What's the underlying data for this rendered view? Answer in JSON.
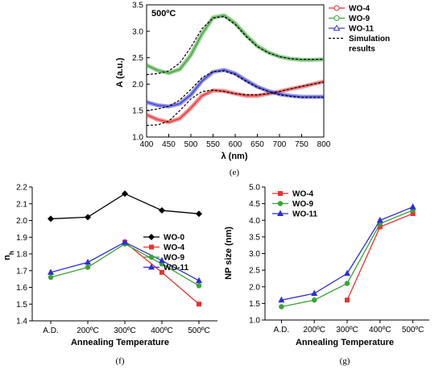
{
  "chart_data": [
    {
      "id": "e",
      "type": "line",
      "caption": "(e)",
      "annotation": "500ºC",
      "xlabel": "λ (nm)",
      "ylabel": "A (a.u.)",
      "xlim": [
        400,
        800
      ],
      "ylim": [
        1.0,
        3.5
      ],
      "xticks": [
        "400",
        "450",
        "500",
        "550",
        "600",
        "650",
        "700",
        "750",
        "800"
      ],
      "yticks": [
        "1.0",
        "1.5",
        "2.0",
        "2.5",
        "3.0",
        "3.5"
      ],
      "x": [
        400,
        425,
        450,
        475,
        500,
        525,
        550,
        575,
        600,
        625,
        650,
        675,
        700,
        725,
        750,
        775,
        800
      ],
      "series": [
        {
          "name": "WO-4",
          "color": "#e8312f",
          "values": [
            1.42,
            1.33,
            1.28,
            1.35,
            1.55,
            1.78,
            1.88,
            1.87,
            1.82,
            1.78,
            1.78,
            1.82,
            1.86,
            1.91,
            1.95,
            2.0,
            2.05
          ]
        },
        {
          "name": "WO-9",
          "color": "#3aa335",
          "values": [
            2.36,
            2.26,
            2.21,
            2.28,
            2.55,
            2.95,
            3.26,
            3.3,
            3.15,
            2.92,
            2.72,
            2.6,
            2.52,
            2.48,
            2.46,
            2.46,
            2.47
          ]
        },
        {
          "name": "WO-11",
          "color": "#3b3bd6",
          "values": [
            1.66,
            1.6,
            1.58,
            1.63,
            1.8,
            2.06,
            2.23,
            2.27,
            2.2,
            2.07,
            1.95,
            1.87,
            1.81,
            1.78,
            1.76,
            1.76,
            1.76
          ]
        },
        {
          "name": "Simulation results",
          "color": "#000000",
          "dashed": true,
          "values": [
            1.22,
            1.23,
            1.3,
            1.5,
            1.72,
            1.86,
            1.89,
            1.86,
            1.82,
            1.8,
            1.8,
            1.82,
            1.86,
            1.91,
            1.96,
            2.0,
            2.04
          ]
        },
        {
          "name": "",
          "color": "#000000",
          "dashed": true,
          "values": [
            2.18,
            2.2,
            2.25,
            2.4,
            2.7,
            3.05,
            3.25,
            3.28,
            3.13,
            2.9,
            2.71,
            2.59,
            2.52,
            2.48,
            2.47,
            2.47,
            2.47
          ]
        },
        {
          "name": "",
          "color": "#000000",
          "dashed": true,
          "values": [
            1.5,
            1.53,
            1.58,
            1.7,
            1.9,
            2.12,
            2.24,
            2.25,
            2.18,
            2.05,
            1.94,
            1.86,
            1.8,
            1.77,
            1.75,
            1.75,
            1.75
          ]
        }
      ],
      "legend": [
        "WO-4",
        "WO-9",
        "WO-11",
        "Simulation",
        "results"
      ],
      "legend_position": "top-right"
    },
    {
      "id": "f",
      "type": "line",
      "caption": "(f)",
      "xlabel": "Annealing Temperature",
      "ylabel": "nh",
      "categories": [
        "A.D.",
        "200ºC",
        "300ºC",
        "400ºC",
        "500ºC"
      ],
      "ylim": [
        1.4,
        2.2
      ],
      "yticks": [
        "1.4",
        "1.5",
        "1.6",
        "1.7",
        "1.8",
        "1.9",
        "2.0",
        "2.1",
        "2.2"
      ],
      "series": [
        {
          "name": "WO-0",
          "color": "#000000",
          "marker": "diamond",
          "values": [
            2.01,
            2.02,
            2.16,
            2.06,
            2.04
          ]
        },
        {
          "name": "WO-4",
          "color": "#e8312f",
          "marker": "square",
          "values": [
            null,
            null,
            1.87,
            1.69,
            1.5
          ]
        },
        {
          "name": "WO-9",
          "color": "#3aa335",
          "marker": "circle",
          "values": [
            1.66,
            1.72,
            1.86,
            1.74,
            1.61
          ]
        },
        {
          "name": "WO-11",
          "color": "#2d2dd6",
          "marker": "triangle",
          "values": [
            1.69,
            1.75,
            1.87,
            1.76,
            1.64
          ]
        }
      ],
      "legend_position": "right"
    },
    {
      "id": "g",
      "type": "line",
      "caption": "(g)",
      "xlabel": "Annealing Temperature",
      "ylabel": "NP size (nm)",
      "categories": [
        "A.D.",
        "200ºC",
        "300ºC",
        "400ºC",
        "500ºC"
      ],
      "ylim": [
        1.0,
        5.0
      ],
      "yticks": [
        "1.0",
        "1.5",
        "2.0",
        "2.5",
        "3.0",
        "3.5",
        "4.0",
        "4.5",
        "5.0"
      ],
      "series": [
        {
          "name": "WO-4",
          "color": "#e8312f",
          "marker": "square",
          "values": [
            null,
            null,
            1.6,
            3.8,
            4.2
          ]
        },
        {
          "name": "WO-9",
          "color": "#3aa335",
          "marker": "circle",
          "values": [
            1.4,
            1.6,
            2.1,
            3.9,
            4.3
          ]
        },
        {
          "name": "WO-11",
          "color": "#2d2dd6",
          "marker": "triangle",
          "values": [
            1.6,
            1.8,
            2.4,
            4.0,
            4.4
          ]
        }
      ],
      "legend_position": "top-left"
    }
  ]
}
